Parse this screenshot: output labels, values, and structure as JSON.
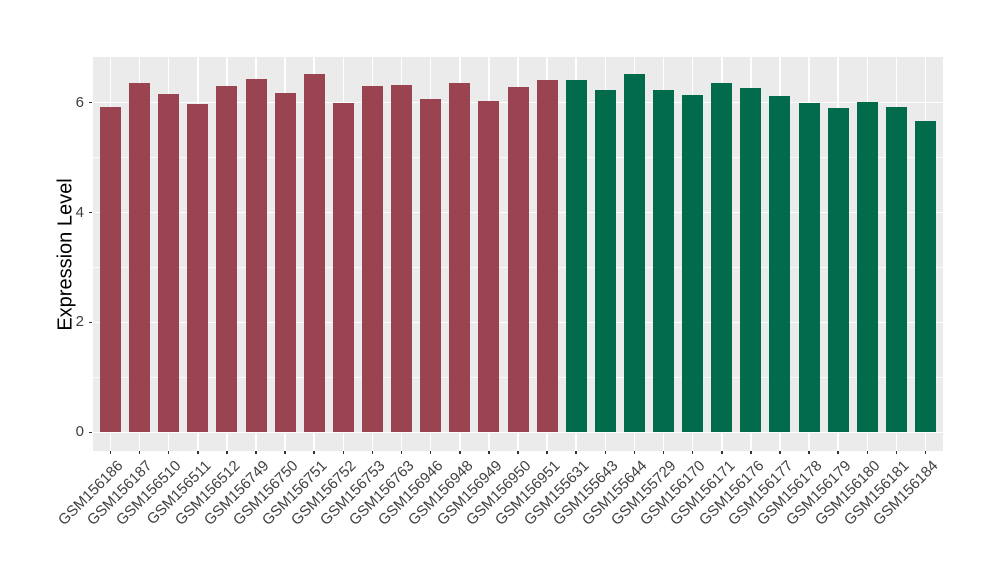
{
  "chart_data": {
    "type": "bar",
    "title": "",
    "xlabel": "",
    "ylabel": "Expression Level",
    "categories": [
      "GSM156186",
      "GSM156187",
      "GSM156510",
      "GSM156511",
      "GSM156512",
      "GSM156749",
      "GSM156750",
      "GSM156751",
      "GSM156752",
      "GSM156753",
      "GSM156763",
      "GSM156946",
      "GSM156948",
      "GSM156949",
      "GSM156950",
      "GSM156951",
      "GSM155631",
      "GSM155643",
      "GSM155644",
      "GSM155729",
      "GSM156170",
      "GSM156171",
      "GSM156176",
      "GSM156177",
      "GSM156178",
      "GSM156179",
      "GSM156180",
      "GSM156181",
      "GSM156184"
    ],
    "values": [
      5.92,
      6.36,
      6.16,
      5.98,
      6.31,
      6.43,
      6.18,
      6.53,
      5.99,
      6.31,
      6.33,
      6.06,
      6.36,
      6.04,
      6.29,
      6.41,
      6.41,
      6.23,
      6.53,
      6.23,
      6.14,
      6.36,
      6.26,
      6.13,
      5.99,
      5.91,
      6.02,
      5.92,
      5.67
    ],
    "bar_groups": [
      0,
      0,
      0,
      0,
      0,
      0,
      0,
      0,
      0,
      0,
      0,
      0,
      0,
      0,
      0,
      0,
      1,
      1,
      1,
      1,
      1,
      1,
      1,
      1,
      1,
      1,
      1,
      1,
      1
    ],
    "group_colors": [
      "#9A4351",
      "#026B4C"
    ],
    "yticks_major": [
      0,
      2,
      4,
      6
    ],
    "yticks_minor": [
      1,
      3,
      5
    ],
    "ylim": [
      0,
      6.86
    ],
    "grid": true,
    "legend": "none",
    "panel_background": "#EBEBEB",
    "grid_color": "#FFFFFF",
    "axis_text_color": "#404040",
    "axis_title_color": "#000000"
  }
}
